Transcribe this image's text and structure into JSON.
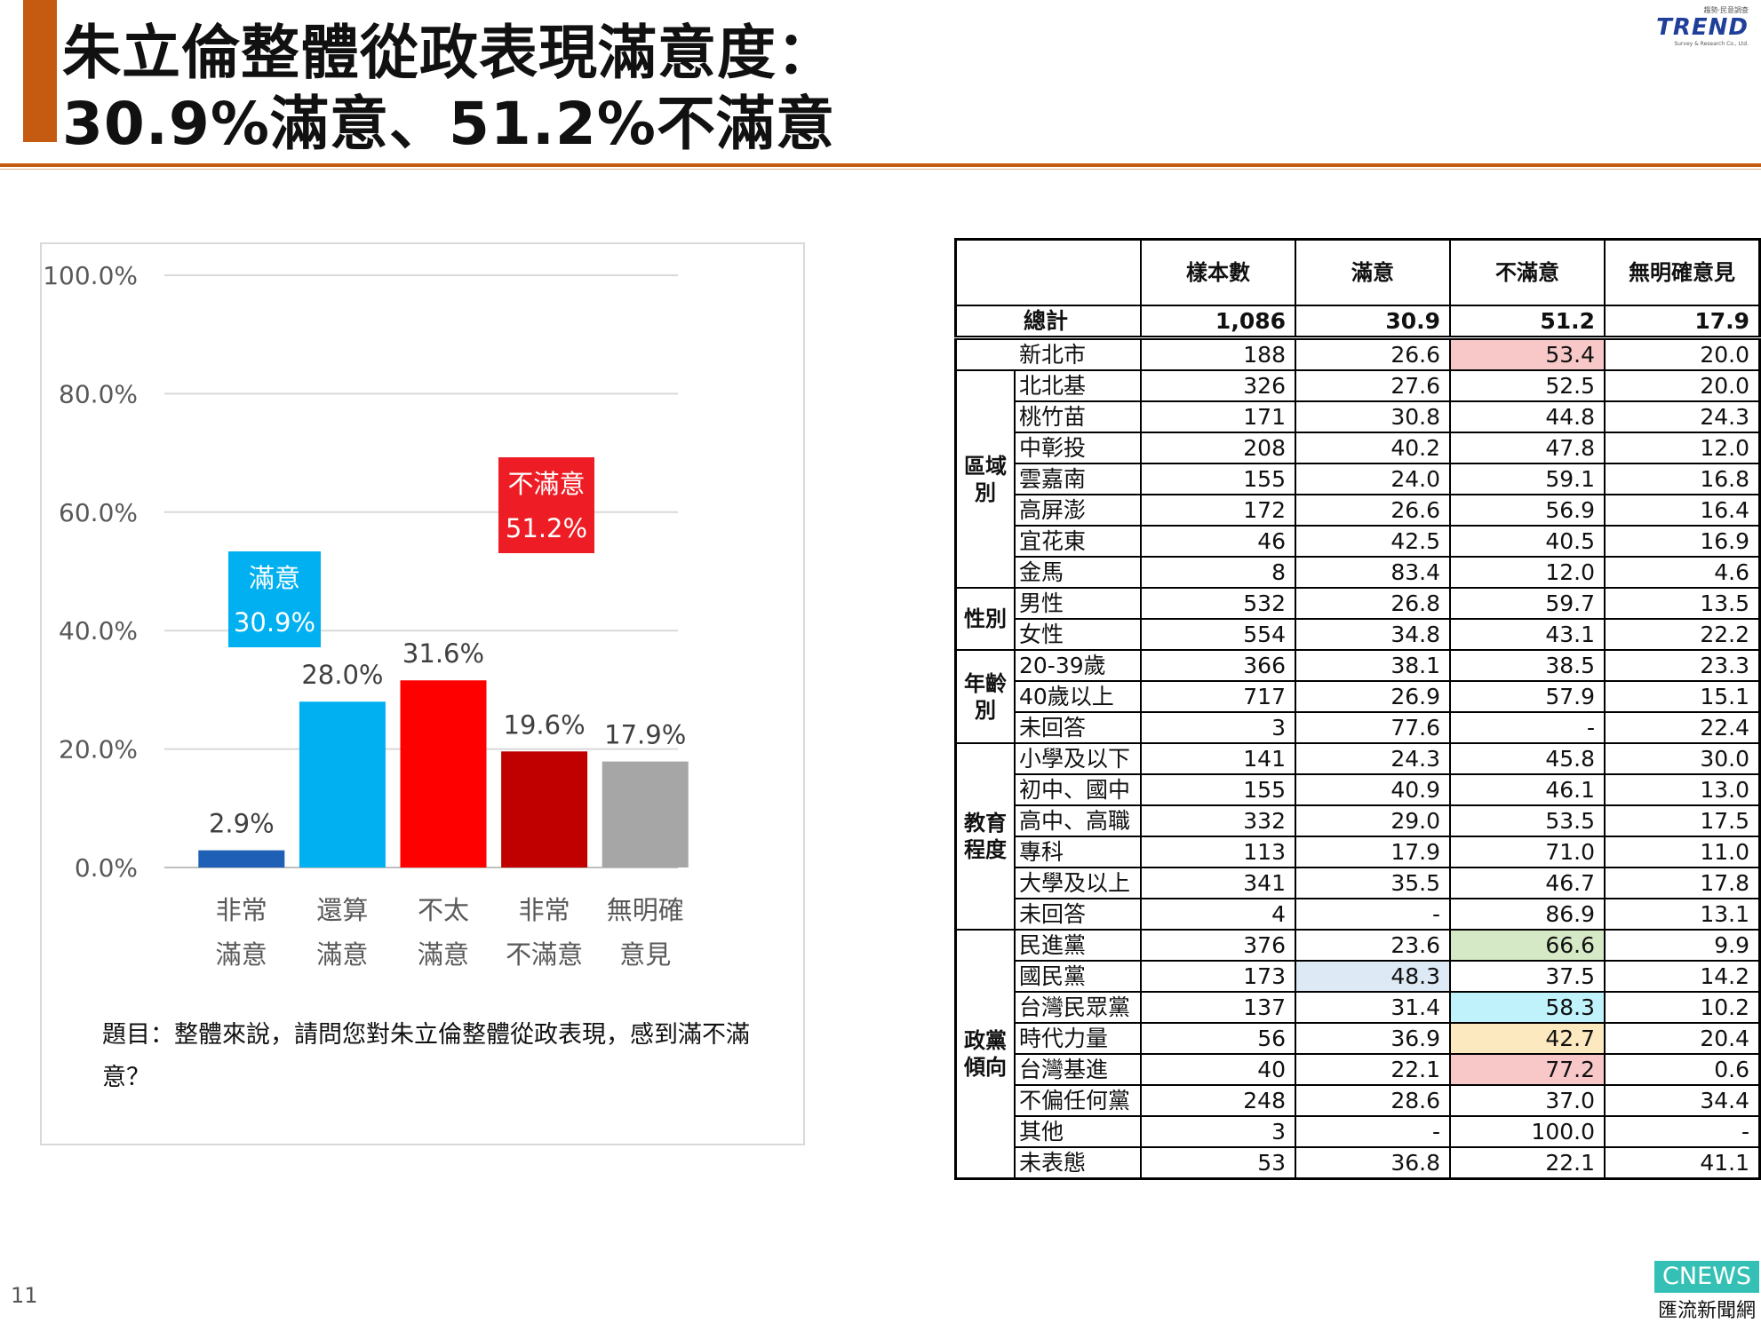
{
  "title": {
    "line1": "朱立倫整體從政表現滿意度：",
    "line2": "30.9%滿意、51.2%不滿意"
  },
  "logo": {
    "small": "趨勢‧民意調查",
    "brand": "TREND",
    "sub": "Survey & Research Co., Ltd."
  },
  "chart_data": {
    "type": "bar",
    "categories": [
      [
        "非常",
        "滿意"
      ],
      [
        "還算",
        "滿意"
      ],
      [
        "不太",
        "滿意"
      ],
      [
        "非常",
        "不滿意"
      ],
      [
        "無明確",
        "意見"
      ]
    ],
    "values": [
      2.9,
      28.0,
      31.6,
      19.6,
      17.9
    ],
    "value_labels": [
      "2.9%",
      "28.0%",
      "31.6%",
      "19.6%",
      "17.9%"
    ],
    "colors": [
      "#1f5fb5",
      "#00b0f0",
      "#ff0000",
      "#c00000",
      "#a6a6a6"
    ],
    "ylim": [
      0,
      100
    ],
    "yticks": [
      "0.0%",
      "20.0%",
      "40.0%",
      "60.0%",
      "80.0%",
      "100.0%"
    ],
    "ytick_values": [
      0,
      20,
      40,
      60,
      80,
      100
    ],
    "grid": true,
    "annotations": [
      {
        "line1": "滿意",
        "line2": "30.9%",
        "color": "#00b0f0"
      },
      {
        "line1": "不滿意",
        "line2": "51.2%",
        "color": "#ee1c24"
      }
    ]
  },
  "question": "題目：整體來說，請問您對朱立倫整體從政表現，感到滿不滿意？",
  "table": {
    "headers": [
      "樣本數",
      "滿意",
      "不滿意",
      "無明確意見"
    ],
    "total": {
      "label": "總計",
      "values": [
        "1,086",
        "30.9",
        "51.2",
        "17.9"
      ]
    },
    "groups": [
      {
        "name": "",
        "rows": [
          {
            "label": "新北市",
            "values": [
              "188",
              "26.6",
              "53.4",
              "20.0"
            ],
            "hl": [
              null,
              null,
              "#f8c8c8",
              null
            ]
          }
        ]
      },
      {
        "name": "區域別",
        "rows": [
          {
            "label": "北北基",
            "values": [
              "326",
              "27.6",
              "52.5",
              "20.0"
            ]
          },
          {
            "label": "桃竹苗",
            "values": [
              "171",
              "30.8",
              "44.8",
              "24.3"
            ]
          },
          {
            "label": "中彰投",
            "values": [
              "208",
              "40.2",
              "47.8",
              "12.0"
            ]
          },
          {
            "label": "雲嘉南",
            "values": [
              "155",
              "24.0",
              "59.1",
              "16.8"
            ]
          },
          {
            "label": "高屏澎",
            "values": [
              "172",
              "26.6",
              "56.9",
              "16.4"
            ]
          },
          {
            "label": "宜花東",
            "values": [
              "46",
              "42.5",
              "40.5",
              "16.9"
            ]
          },
          {
            "label": "金馬",
            "values": [
              "8",
              "83.4",
              "12.0",
              "4.6"
            ]
          }
        ]
      },
      {
        "name": "性別",
        "rows": [
          {
            "label": "男性",
            "values": [
              "532",
              "26.8",
              "59.7",
              "13.5"
            ]
          },
          {
            "label": "女性",
            "values": [
              "554",
              "34.8",
              "43.1",
              "22.2"
            ]
          }
        ]
      },
      {
        "name": "年齡別",
        "rows": [
          {
            "label": "20-39歲",
            "values": [
              "366",
              "38.1",
              "38.5",
              "23.3"
            ]
          },
          {
            "label": "40歲以上",
            "values": [
              "717",
              "26.9",
              "57.9",
              "15.1"
            ]
          },
          {
            "label": "未回答",
            "values": [
              "3",
              "77.6",
              "-",
              "22.4"
            ]
          }
        ]
      },
      {
        "name": "教育程度",
        "rows": [
          {
            "label": "小學及以下",
            "values": [
              "141",
              "24.3",
              "45.8",
              "30.0"
            ]
          },
          {
            "label": "初中、國中",
            "values": [
              "155",
              "40.9",
              "46.1",
              "13.0"
            ]
          },
          {
            "label": "高中、高職",
            "values": [
              "332",
              "29.0",
              "53.5",
              "17.5"
            ]
          },
          {
            "label": "專科",
            "values": [
              "113",
              "17.9",
              "71.0",
              "11.0"
            ]
          },
          {
            "label": "大學及以上",
            "values": [
              "341",
              "35.5",
              "46.7",
              "17.8"
            ]
          },
          {
            "label": "未回答",
            "values": [
              "4",
              "-",
              "86.9",
              "13.1"
            ]
          }
        ]
      },
      {
        "name": "政黨傾向",
        "rows": [
          {
            "label": "民進黨",
            "values": [
              "376",
              "23.6",
              "66.6",
              "9.9"
            ],
            "hl": [
              null,
              null,
              "#d6e9c6",
              null
            ]
          },
          {
            "label": "國民黨",
            "values": [
              "173",
              "48.3",
              "37.5",
              "14.2"
            ],
            "hl": [
              null,
              "#dde9f5",
              null,
              null
            ]
          },
          {
            "label": "台灣民眾黨",
            "values": [
              "137",
              "31.4",
              "58.3",
              "10.2"
            ],
            "hl": [
              null,
              null,
              "#bff2fa",
              null
            ]
          },
          {
            "label": "時代力量",
            "values": [
              "56",
              "36.9",
              "42.7",
              "20.4"
            ],
            "hl": [
              null,
              null,
              "#fde9c0",
              null
            ]
          },
          {
            "label": "台灣基進",
            "values": [
              "40",
              "22.1",
              "77.2",
              "0.6"
            ],
            "hl": [
              null,
              null,
              "#f8c8c8",
              null
            ]
          },
          {
            "label": "不偏任何黨",
            "values": [
              "248",
              "28.6",
              "37.0",
              "34.4"
            ]
          },
          {
            "label": "其他",
            "values": [
              "3",
              "-",
              "100.0",
              "-"
            ]
          },
          {
            "label": "未表態",
            "values": [
              "53",
              "36.8",
              "22.1",
              "41.1"
            ]
          }
        ]
      }
    ]
  },
  "footer": {
    "page_number": "11",
    "cnews_top": "CNEWS",
    "cnews_bottom": "匯流新聞網"
  }
}
